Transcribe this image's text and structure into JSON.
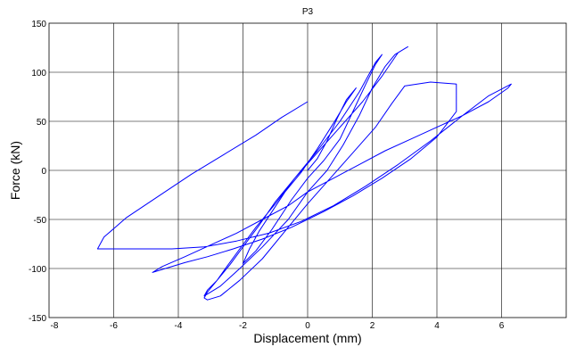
{
  "chart_data": {
    "type": "line",
    "title": "P3",
    "xlabel": "Displacement (mm)",
    "ylabel": "Force (kN)",
    "xlim": [
      -8,
      8
    ],
    "ylim": [
      -150,
      150
    ],
    "xticks": [
      -8,
      -6,
      -4,
      -2,
      0,
      2,
      4,
      6
    ],
    "yticks": [
      -150,
      -100,
      -50,
      0,
      50,
      100,
      150
    ],
    "xtick_labels": [
      "-8",
      "-6",
      "-4",
      "-2",
      "0",
      "2",
      "4",
      "6"
    ],
    "ytick_labels": [
      "-150",
      "-100",
      "-50",
      "0",
      "50",
      "100",
      "150"
    ],
    "grid": true,
    "line_color": "#0000ff",
    "series": [
      {
        "values_description_free": true,
        "x": [
          0,
          0.3,
          0.6,
          0.9,
          1.2,
          1.5,
          1.2,
          0.8,
          0.3,
          -0.2,
          -0.7,
          -1.1,
          -1.5,
          -1.8,
          -2.0,
          -1.6,
          -1.1,
          -0.5,
          0,
          0.5,
          1.0,
          1.4,
          1.8,
          2.1,
          2.3,
          2.1,
          1.6,
          1.0,
          0.3,
          -0.4,
          -1.0,
          -1.6,
          -2.1,
          -2.5,
          -2.8,
          -3.1,
          -3.2,
          -2.7,
          -2.1,
          -1.4,
          -0.6,
          0,
          0.6,
          1.1,
          1.6,
          2.0,
          2.4,
          2.7,
          3.0,
          3.1,
          2.8,
          2.3,
          1.7,
          1.0,
          0.3,
          -0.4,
          -1.0,
          -1.5,
          -2.0,
          -2.4,
          -2.8,
          -3.1,
          -3.2,
          -3.1,
          -2.7,
          -2.1,
          -1.4,
          -0.7,
          0,
          0.7,
          1.4,
          2.1,
          2.6,
          3.0,
          3.8,
          4.6,
          4.6,
          4.0,
          3.2,
          2.3,
          1.4,
          0.5,
          -0.5,
          -1.4,
          -2.3,
          -3.1,
          -3.8,
          -4.4,
          -4.8,
          -4.5,
          -3.8,
          -3.0,
          -2.2,
          -1.4,
          -0.6,
          0,
          0.8,
          1.6,
          2.4,
          3.2,
          4.0,
          4.8,
          5.6,
          6.2,
          6.3,
          5.6,
          4.8,
          3.8,
          2.8,
          1.8,
          0.8,
          -0.2,
          -1.2,
          -2.2,
          -3.2,
          -4.2,
          -5.1,
          -5.8,
          -6.3,
          -6.5,
          -6.3,
          -5.6,
          -4.6,
          -3.6,
          -2.6,
          -1.6,
          -0.8,
          0
        ],
        "y": [
          0,
          12,
          30,
          52,
          72,
          84,
          70,
          48,
          22,
          -2,
          -22,
          -42,
          -62,
          -80,
          -95,
          -82,
          -60,
          -30,
          -8,
          10,
          32,
          60,
          88,
          108,
          118,
          110,
          80,
          50,
          20,
          -8,
          -34,
          -58,
          -80,
          -98,
          -112,
          -122,
          -128,
          -118,
          -100,
          -78,
          -50,
          -22,
          0,
          26,
          56,
          84,
          106,
          118,
          124,
          126,
          120,
          96,
          70,
          44,
          18,
          -8,
          -32,
          -56,
          -78,
          -96,
          -112,
          -124,
          -130,
          -132,
          -128,
          -112,
          -90,
          -62,
          -34,
          -8,
          18,
          44,
          68,
          86,
          90,
          88,
          60,
          34,
          12,
          -8,
          -26,
          -42,
          -58,
          -70,
          -80,
          -88,
          -94,
          -100,
          -104,
          -98,
          -88,
          -76,
          -64,
          -50,
          -36,
          -22,
          -8,
          6,
          20,
          32,
          44,
          56,
          70,
          84,
          88,
          76,
          56,
          30,
          6,
          -16,
          -36,
          -52,
          -64,
          -72,
          -78,
          -80,
          -80,
          -80,
          -80,
          -80,
          -68,
          -48,
          -26,
          -4,
          16,
          36,
          54,
          70
        ]
      }
    ]
  }
}
